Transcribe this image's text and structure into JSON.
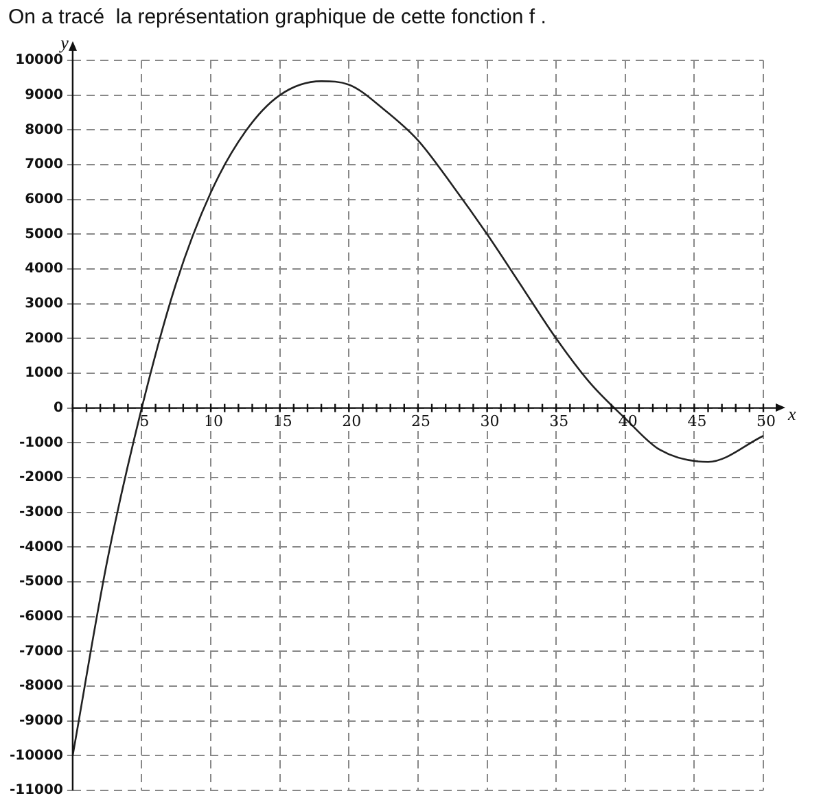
{
  "chart_data": {
    "type": "line",
    "title": "On a tracé  la représentation graphique de cette fonction f .",
    "xlabel": "x",
    "ylabel": "y",
    "x": [
      0,
      2.5,
      5,
      7.5,
      10,
      12.5,
      15,
      18,
      20,
      22.5,
      25,
      27.5,
      30,
      32.5,
      35,
      37.5,
      40,
      42.5,
      46,
      50
    ],
    "series": [
      {
        "color": "#222222",
        "values": [
          -10000,
          -4400,
          0,
          3600,
          6200,
          7950,
          9000,
          9400,
          9300,
          8600,
          7700,
          6400,
          5000,
          3500,
          2000,
          700,
          -300,
          -1200,
          -1550,
          -800
        ]
      }
    ],
    "xlim": [
      0,
      50
    ],
    "xticks": [
      {
        "value": 0,
        "label": null
      },
      {
        "value": 1,
        "label": null
      },
      {
        "value": 2,
        "label": null
      },
      {
        "value": 3,
        "label": null
      },
      {
        "value": 4,
        "label": null
      },
      5,
      {
        "value": 6,
        "label": null
      },
      {
        "value": 7,
        "label": null
      },
      {
        "value": 8,
        "label": null
      },
      {
        "value": 9,
        "label": null
      },
      10,
      {
        "value": 11,
        "label": null
      },
      {
        "value": 12,
        "label": null
      },
      {
        "value": 13,
        "label": null
      },
      {
        "value": 14,
        "label": null
      },
      15,
      {
        "value": 16,
        "label": null
      },
      {
        "value": 17,
        "label": null
      },
      {
        "value": 18,
        "label": null
      },
      {
        "value": 19,
        "label": null
      },
      20,
      {
        "value": 21,
        "label": null
      },
      {
        "value": 22,
        "label": null
      },
      {
        "value": 23,
        "label": null
      },
      {
        "value": 24,
        "label": null
      },
      25,
      {
        "value": 26,
        "label": null
      },
      {
        "value": 27,
        "label": null
      },
      {
        "value": 28,
        "label": null
      },
      {
        "value": 29,
        "label": null
      },
      30,
      {
        "value": 31,
        "label": null
      },
      {
        "value": 32,
        "label": null
      },
      {
        "value": 33,
        "label": null
      },
      {
        "value": 34,
        "label": null
      },
      35,
      {
        "value": 36,
        "label": null
      },
      {
        "value": 37,
        "label": null
      },
      {
        "value": 38,
        "label": null
      },
      {
        "value": 39,
        "label": null
      },
      40,
      {
        "value": 41,
        "label": null
      },
      {
        "value": 42,
        "label": null
      },
      {
        "value": 43,
        "label": null
      },
      {
        "value": 44,
        "label": null
      },
      45,
      {
        "value": 46,
        "label": null
      },
      {
        "value": 47,
        "label": null
      },
      {
        "value": 48,
        "label": null
      },
      {
        "value": 49,
        "label": null
      },
      50
    ],
    "ylim": [
      -11000,
      10000
    ],
    "yticks": [
      -11000,
      -10000,
      -9000,
      -8000,
      -7000,
      -6000,
      -5000,
      -4000,
      -3000,
      -2000,
      -1000,
      0,
      1000,
      2000,
      3000,
      4000,
      5000,
      6000,
      7000,
      8000,
      9000,
      10000
    ],
    "grid": true,
    "marker": "none",
    "line_style": "solid"
  }
}
